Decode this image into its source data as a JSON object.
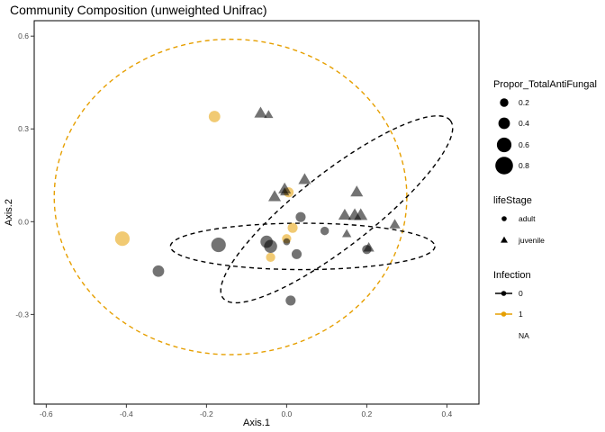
{
  "chart_data": {
    "type": "scatter",
    "title": "Community Composition (unweighted Unifrac)",
    "xlabel": "Axis.1",
    "ylabel": "Axis.2",
    "xlim": [
      -0.63,
      0.48
    ],
    "ylim": [
      -0.59,
      0.65
    ],
    "xticks": [
      -0.6,
      -0.4,
      -0.2,
      0.0,
      0.2,
      0.4
    ],
    "xtick_labels": [
      "-0.6",
      "-0.4",
      "-0.2",
      "0.0",
      "0.2",
      "0.4"
    ],
    "yticks": [
      -0.3,
      0.0,
      0.3,
      0.6
    ],
    "ytick_labels": [
      "-0.3",
      "0.0",
      "0.3",
      "0.6"
    ],
    "grid": false,
    "colors": {
      "infection_0": "#000000",
      "infection_1": "#E69F00",
      "point_alpha": 0.55
    },
    "legends": [
      {
        "title": "Propor_TotalAntiFungal",
        "kind": "size",
        "items": [
          {
            "label": "0.2",
            "value": 0.2
          },
          {
            "label": "0.4",
            "value": 0.4
          },
          {
            "label": "0.6",
            "value": 0.6
          },
          {
            "label": "0.8",
            "value": 0.8
          }
        ]
      },
      {
        "title": "lifeStage",
        "kind": "shape",
        "items": [
          {
            "label": "adult",
            "shape": "circle"
          },
          {
            "label": "juvenile",
            "shape": "triangle"
          }
        ]
      },
      {
        "title": "Infection",
        "kind": "color",
        "items": [
          {
            "label": "0",
            "color": "#000000"
          },
          {
            "label": "1",
            "color": "#E69F00"
          },
          {
            "label": "NA",
            "color": null
          }
        ]
      }
    ],
    "ellipses": [
      {
        "infection": "1",
        "color": "#E69F00",
        "center": [
          -0.14,
          0.08
        ],
        "semi_axes": [
          0.44,
          0.51
        ],
        "angle": 0
      },
      {
        "infection": "0",
        "color": "#000000",
        "center": [
          0.125,
          0.04
        ],
        "semi_axes": [
          0.36,
          0.12
        ],
        "angle": -38
      },
      {
        "infection": "0",
        "color": "#000000",
        "center": [
          0.04,
          -0.08
        ],
        "semi_axes": [
          0.33,
          0.075
        ],
        "angle": 0
      }
    ],
    "points": [
      {
        "x": -0.41,
        "y": -0.055,
        "size": 0.6,
        "shape": "circle",
        "infection": "1"
      },
      {
        "x": -0.18,
        "y": 0.34,
        "size": 0.4,
        "shape": "circle",
        "infection": "1"
      },
      {
        "x": 0.005,
        "y": 0.095,
        "size": 0.3,
        "shape": "circle",
        "infection": "1"
      },
      {
        "x": 0.015,
        "y": -0.02,
        "size": 0.3,
        "shape": "circle",
        "infection": "1"
      },
      {
        "x": 0.0,
        "y": -0.055,
        "size": 0.25,
        "shape": "circle",
        "infection": "1"
      },
      {
        "x": -0.04,
        "y": -0.115,
        "size": 0.25,
        "shape": "circle",
        "infection": "1"
      },
      {
        "x": -0.17,
        "y": -0.075,
        "size": 0.6,
        "shape": "circle",
        "infection": "0"
      },
      {
        "x": -0.32,
        "y": -0.16,
        "size": 0.4,
        "shape": "circle",
        "infection": "0"
      },
      {
        "x": -0.05,
        "y": -0.065,
        "size": 0.45,
        "shape": "circle",
        "infection": "0"
      },
      {
        "x": -0.04,
        "y": -0.08,
        "size": 0.5,
        "shape": "circle",
        "infection": "0"
      },
      {
        "x": 0.035,
        "y": 0.015,
        "size": 0.3,
        "shape": "circle",
        "infection": "0"
      },
      {
        "x": 0.095,
        "y": -0.03,
        "size": 0.2,
        "shape": "circle",
        "infection": "0"
      },
      {
        "x": 0.025,
        "y": -0.105,
        "size": 0.3,
        "shape": "circle",
        "infection": "0"
      },
      {
        "x": 0.01,
        "y": -0.255,
        "size": 0.3,
        "shape": "circle",
        "infection": "0"
      },
      {
        "x": 0.2,
        "y": -0.09,
        "size": 0.25,
        "shape": "circle",
        "infection": "0"
      },
      {
        "x": -0.065,
        "y": 0.35,
        "size": 0.4,
        "shape": "triangle",
        "infection": "0"
      },
      {
        "x": -0.045,
        "y": 0.345,
        "size": 0.2,
        "shape": "triangle",
        "infection": "0"
      },
      {
        "x": -0.03,
        "y": 0.08,
        "size": 0.4,
        "shape": "triangle",
        "infection": "0"
      },
      {
        "x": -0.005,
        "y": 0.105,
        "size": 0.4,
        "shape": "triangle",
        "infection": "0"
      },
      {
        "x": 0.045,
        "y": 0.135,
        "size": 0.4,
        "shape": "triangle",
        "infection": "0"
      },
      {
        "x": 0.175,
        "y": 0.095,
        "size": 0.4,
        "shape": "triangle",
        "infection": "0"
      },
      {
        "x": 0.145,
        "y": 0.02,
        "size": 0.4,
        "shape": "triangle",
        "infection": "0"
      },
      {
        "x": 0.17,
        "y": 0.02,
        "size": 0.45,
        "shape": "triangle",
        "infection": "0"
      },
      {
        "x": 0.185,
        "y": 0.02,
        "size": 0.45,
        "shape": "triangle",
        "infection": "0"
      },
      {
        "x": 0.15,
        "y": -0.04,
        "size": 0.2,
        "shape": "triangle",
        "infection": "0"
      },
      {
        "x": 0.27,
        "y": -0.01,
        "size": 0.3,
        "shape": "triangle",
        "infection": "0"
      },
      {
        "x": 0.205,
        "y": -0.085,
        "size": 0.3,
        "shape": "triangle",
        "infection": "0"
      },
      {
        "x": -0.005,
        "y": 0.095,
        "size": 0.2,
        "shape": "triangle",
        "infection": "0"
      },
      {
        "x": 0.0,
        "y": -0.065,
        "size": 0.1,
        "shape": "circle",
        "infection": "0"
      }
    ]
  }
}
